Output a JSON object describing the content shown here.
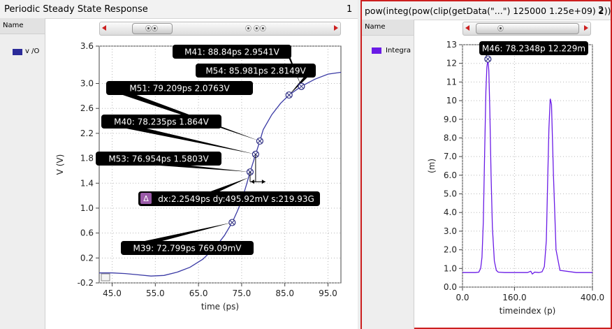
{
  "left": {
    "title": "Periodic Steady State Response",
    "number": "1",
    "legend_header": "Name",
    "legend_item": "v /O",
    "legend_color": "#2b2b99",
    "scroll_thumb_label": "⦿⦿",
    "scroll_mid_label": "⦿ ⦿⦿"
  },
  "right": {
    "title": "pow(integ(pow(clip(getData(\"...\") 125000 1.25e+09) 2))",
    "number": "2",
    "legend_header": "Name",
    "legend_item": "Integra",
    "legend_color": "#6a1be6",
    "scroll_thumb_label": "⦿"
  },
  "chart_data": [
    {
      "type": "line",
      "xlabel": "time (ps)",
      "ylabel": "V (V)",
      "xlim": [
        42,
        98
      ],
      "ylim": [
        -0.2,
        3.6
      ],
      "grid": true,
      "color": "#3a3aa5",
      "xticks": [
        "45.0",
        "55.0",
        "65.0",
        "75.0",
        "85.0",
        "95.0"
      ],
      "xtick_values": [
        45,
        55,
        65,
        75,
        85,
        95
      ],
      "yticks": [
        "-0.2",
        "0.2",
        "0.6",
        "1.0",
        "1.4",
        "1.8",
        "2.2",
        "2.6",
        "3.0",
        "3.6"
      ],
      "ytick_values": [
        -0.2,
        0.2,
        0.6,
        1.0,
        1.4,
        1.8,
        2.2,
        2.6,
        3.0,
        3.6
      ],
      "x": [
        42,
        45,
        48,
        51,
        54,
        57,
        60,
        63,
        66,
        69,
        71,
        72.799,
        74,
        75,
        76,
        76.954,
        78.235,
        79.209,
        80,
        82,
        84,
        85.981,
        88.84,
        92,
        95,
        98
      ],
      "y": [
        -0.04,
        -0.04,
        -0.05,
        -0.07,
        -0.09,
        -0.08,
        -0.03,
        0.05,
        0.18,
        0.38,
        0.56,
        0.769,
        0.95,
        1.12,
        1.35,
        1.58,
        1.864,
        2.076,
        2.26,
        2.5,
        2.68,
        2.815,
        2.954,
        3.07,
        3.15,
        3.18
      ],
      "markers": [
        {
          "label": "M41: 88.84ps 2.9541V",
          "x": 88.84,
          "y": 2.9541
        },
        {
          "label": "M54: 85.981ps 2.8149V",
          "x": 85.981,
          "y": 2.8149
        },
        {
          "label": "M51: 79.209ps 2.0763V",
          "x": 79.209,
          "y": 2.0763
        },
        {
          "label": "M40: 78.235ps 1.864V",
          "x": 78.235,
          "y": 1.864
        },
        {
          "label": "M53: 76.954ps 1.5803V",
          "x": 76.954,
          "y": 1.5803
        },
        {
          "label": "M39: 72.799ps 769.09mV",
          "x": 72.799,
          "y": 0.76909
        }
      ],
      "delta_label": "dx:2.2549ps dy:495.92mV s:219.93G",
      "delta_icon": "Δ"
    },
    {
      "type": "line",
      "xlabel": "timeindex (p)",
      "ylabel": "(m)",
      "xlim": [
        0,
        400
      ],
      "ylim": [
        0,
        13
      ],
      "grid": true,
      "color": "#6a1be6",
      "xticks": [
        "0.0",
        "160.0",
        "400.0"
      ],
      "xtick_values": [
        0,
        160,
        400
      ],
      "yticks": [
        "0.0",
        "1.0",
        "2.0",
        "3.0",
        "4.0",
        "5.0",
        "6.0",
        "7.0",
        "8.0",
        "9.0",
        "10",
        "11",
        "12",
        "13"
      ],
      "ytick_values": [
        0,
        1,
        2,
        3,
        4,
        5,
        6,
        7,
        8,
        9,
        10,
        11,
        12,
        13
      ],
      "x": [
        0,
        20,
        40,
        50,
        56,
        60,
        64,
        68,
        72,
        75,
        78.2348,
        81,
        84,
        88,
        92,
        98,
        104,
        110,
        130,
        160,
        200,
        210,
        215,
        222,
        235,
        245,
        252,
        258,
        262,
        266,
        270,
        274,
        280,
        288,
        300,
        350,
        400
      ],
      "y": [
        0.78,
        0.78,
        0.78,
        0.8,
        1.0,
        1.6,
        3.5,
        7.0,
        10.5,
        11.8,
        12.229,
        11.6,
        9.5,
        6.0,
        3.2,
        1.4,
        0.9,
        0.8,
        0.78,
        0.78,
        0.78,
        0.85,
        0.7,
        0.8,
        0.78,
        0.82,
        1.1,
        2.5,
        5.5,
        8.5,
        10.1,
        9.8,
        6.0,
        2.0,
        0.9,
        0.78,
        0.78
      ],
      "markers": [
        {
          "label": "M46: 78.2348p 12.229m",
          "x": 78.2348,
          "y": 12.229
        }
      ]
    }
  ]
}
